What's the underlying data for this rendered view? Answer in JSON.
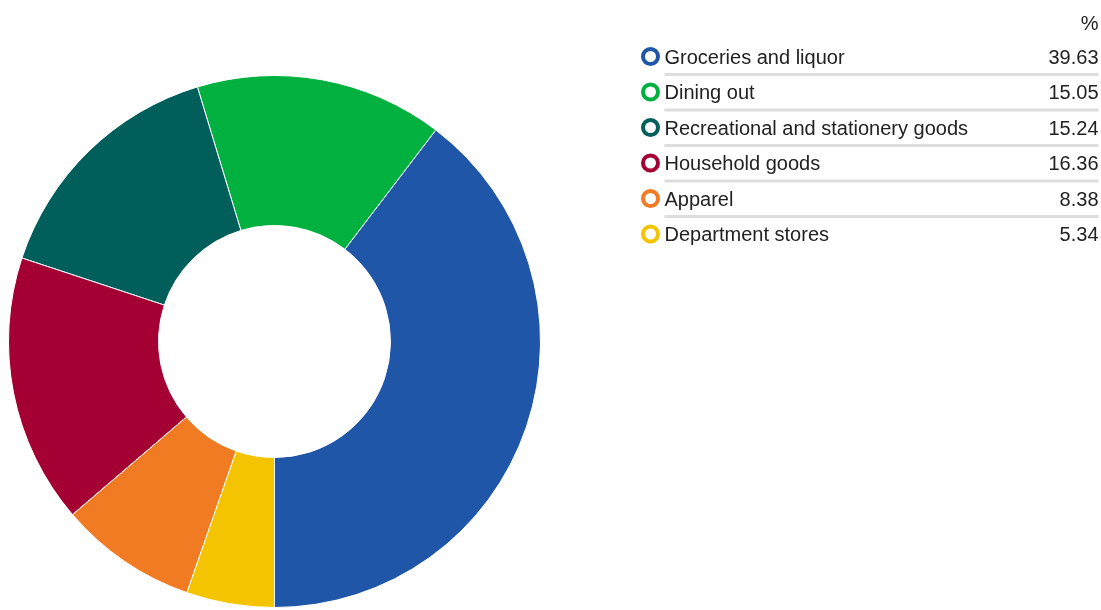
{
  "chart_data": {
    "type": "donut",
    "legend_title": "%",
    "categories": [
      "Groceries and liquor",
      "Dining out",
      "Recreational and stationery goods",
      "Household goods",
      "Apparel",
      "Department stores"
    ],
    "values": [
      39.63,
      15.05,
      15.24,
      16.36,
      8.38,
      5.34
    ],
    "colors": [
      "#1f56a8",
      "#00b140",
      "#005f5a",
      "#a50034",
      "#f07b22",
      "#f5c400"
    ],
    "data_labels": true,
    "legend": "top right"
  }
}
